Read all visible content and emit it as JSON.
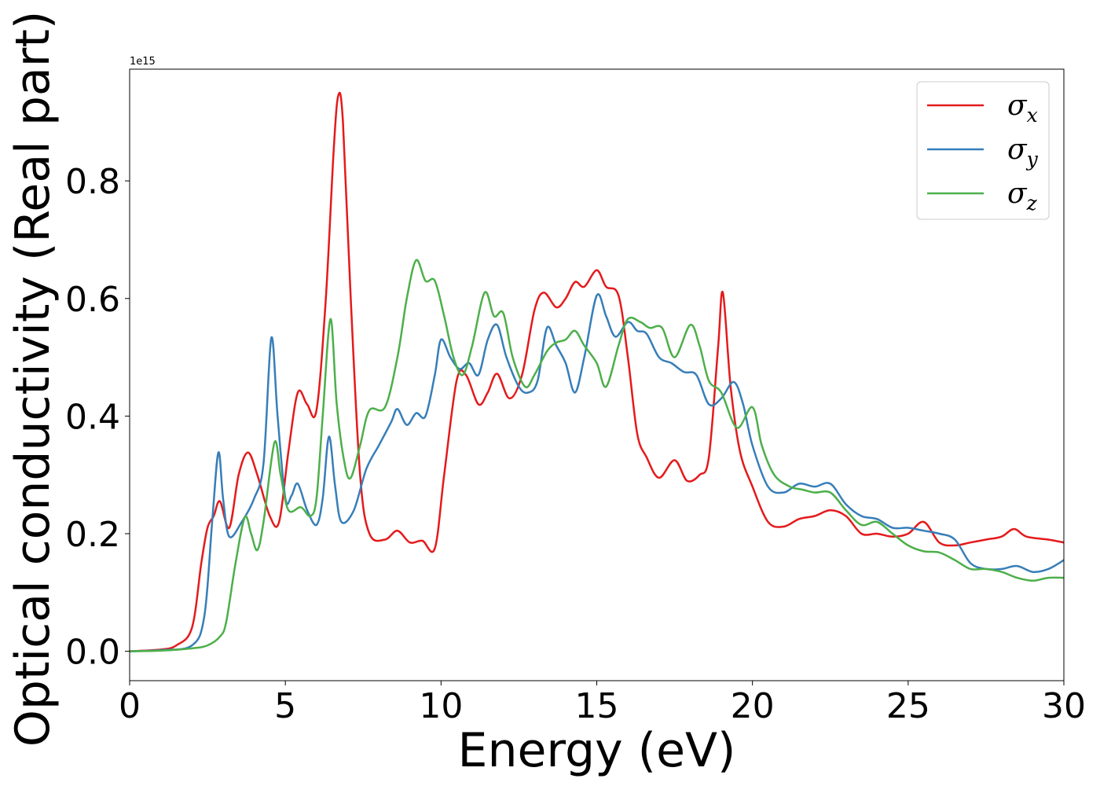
{
  "chart_data": {
    "type": "line",
    "xlabel": "Energy (eV)",
    "ylabel": "Optical conductivity (Real part)",
    "offset_text": "1e15",
    "xlim": [
      0,
      30
    ],
    "ylim": [
      -0.05,
      0.99
    ],
    "x_ticks": [
      0,
      5,
      10,
      15,
      20,
      25,
      30
    ],
    "y_ticks": [
      0.0,
      0.2,
      0.4,
      0.6,
      0.8
    ],
    "y_tick_labels": [
      "0.0",
      "0.2",
      "0.4",
      "0.6",
      "0.8"
    ],
    "grid": false,
    "legend_position": "top-right",
    "series": [
      {
        "name": "σ",
        "subscript": "x",
        "color": "#e41a1c",
        "points": [
          [
            0,
            0
          ],
          [
            1,
            0.003
          ],
          [
            1.5,
            0.01
          ],
          [
            2,
            0.04
          ],
          [
            2.3,
            0.15
          ],
          [
            2.5,
            0.21
          ],
          [
            2.7,
            0.23
          ],
          [
            2.9,
            0.255
          ],
          [
            3.2,
            0.21
          ],
          [
            3.5,
            0.3
          ],
          [
            3.8,
            0.338
          ],
          [
            4.1,
            0.3
          ],
          [
            4.5,
            0.23
          ],
          [
            4.8,
            0.22
          ],
          [
            5.1,
            0.34
          ],
          [
            5.4,
            0.44
          ],
          [
            5.7,
            0.42
          ],
          [
            6.0,
            0.41
          ],
          [
            6.3,
            0.6
          ],
          [
            6.55,
            0.85
          ],
          [
            6.7,
            0.945
          ],
          [
            6.85,
            0.9
          ],
          [
            7.1,
            0.6
          ],
          [
            7.4,
            0.3
          ],
          [
            7.7,
            0.2
          ],
          [
            8.2,
            0.19
          ],
          [
            8.6,
            0.205
          ],
          [
            9.0,
            0.185
          ],
          [
            9.4,
            0.188
          ],
          [
            9.8,
            0.175
          ],
          [
            10.1,
            0.3
          ],
          [
            10.5,
            0.46
          ],
          [
            10.8,
            0.47
          ],
          [
            11.2,
            0.42
          ],
          [
            11.5,
            0.44
          ],
          [
            11.8,
            0.472
          ],
          [
            12.2,
            0.43
          ],
          [
            12.6,
            0.47
          ],
          [
            13.0,
            0.58
          ],
          [
            13.3,
            0.61
          ],
          [
            13.7,
            0.585
          ],
          [
            14.0,
            0.6
          ],
          [
            14.3,
            0.628
          ],
          [
            14.6,
            0.62
          ],
          [
            15.0,
            0.648
          ],
          [
            15.3,
            0.62
          ],
          [
            15.7,
            0.605
          ],
          [
            16.0,
            0.5
          ],
          [
            16.3,
            0.37
          ],
          [
            16.6,
            0.33
          ],
          [
            17.0,
            0.295
          ],
          [
            17.5,
            0.325
          ],
          [
            17.9,
            0.29
          ],
          [
            18.3,
            0.3
          ],
          [
            18.6,
            0.33
          ],
          [
            18.9,
            0.52
          ],
          [
            19.05,
            0.61
          ],
          [
            19.3,
            0.45
          ],
          [
            19.6,
            0.34
          ],
          [
            20.0,
            0.28
          ],
          [
            20.5,
            0.22
          ],
          [
            21.0,
            0.212
          ],
          [
            21.5,
            0.225
          ],
          [
            22.0,
            0.23
          ],
          [
            22.5,
            0.24
          ],
          [
            23.0,
            0.23
          ],
          [
            23.5,
            0.2
          ],
          [
            24.0,
            0.2
          ],
          [
            24.5,
            0.195
          ],
          [
            25.0,
            0.2
          ],
          [
            25.5,
            0.22
          ],
          [
            26.0,
            0.185
          ],
          [
            26.5,
            0.18
          ],
          [
            27.0,
            0.185
          ],
          [
            27.5,
            0.19
          ],
          [
            28.0,
            0.195
          ],
          [
            28.4,
            0.208
          ],
          [
            28.8,
            0.195
          ],
          [
            29.5,
            0.19
          ],
          [
            30,
            0.185
          ]
        ]
      },
      {
        "name": "σ",
        "subscript": "y",
        "color": "#377eb8",
        "points": [
          [
            0,
            0
          ],
          [
            1,
            0.002
          ],
          [
            2,
            0.01
          ],
          [
            2.4,
            0.06
          ],
          [
            2.65,
            0.22
          ],
          [
            2.85,
            0.338
          ],
          [
            3.0,
            0.26
          ],
          [
            3.2,
            0.195
          ],
          [
            3.6,
            0.22
          ],
          [
            4.0,
            0.26
          ],
          [
            4.3,
            0.32
          ],
          [
            4.55,
            0.533
          ],
          [
            4.75,
            0.4
          ],
          [
            5.0,
            0.26
          ],
          [
            5.2,
            0.265
          ],
          [
            5.4,
            0.285
          ],
          [
            5.7,
            0.24
          ],
          [
            6.0,
            0.215
          ],
          [
            6.2,
            0.26
          ],
          [
            6.4,
            0.365
          ],
          [
            6.6,
            0.28
          ],
          [
            6.8,
            0.22
          ],
          [
            7.2,
            0.24
          ],
          [
            7.6,
            0.31
          ],
          [
            8.0,
            0.35
          ],
          [
            8.4,
            0.39
          ],
          [
            8.6,
            0.412
          ],
          [
            8.9,
            0.385
          ],
          [
            9.2,
            0.405
          ],
          [
            9.5,
            0.4
          ],
          [
            9.8,
            0.47
          ],
          [
            10.0,
            0.53
          ],
          [
            10.3,
            0.5
          ],
          [
            10.6,
            0.48
          ],
          [
            10.9,
            0.49
          ],
          [
            11.2,
            0.47
          ],
          [
            11.5,
            0.53
          ],
          [
            11.8,
            0.555
          ],
          [
            12.1,
            0.5
          ],
          [
            12.5,
            0.45
          ],
          [
            12.8,
            0.44
          ],
          [
            13.1,
            0.46
          ],
          [
            13.4,
            0.55
          ],
          [
            13.7,
            0.52
          ],
          [
            14.0,
            0.49
          ],
          [
            14.3,
            0.44
          ],
          [
            14.6,
            0.5
          ],
          [
            15.0,
            0.605
          ],
          [
            15.3,
            0.57
          ],
          [
            15.6,
            0.535
          ],
          [
            16.0,
            0.56
          ],
          [
            16.3,
            0.545
          ],
          [
            16.6,
            0.54
          ],
          [
            17.0,
            0.5
          ],
          [
            17.4,
            0.49
          ],
          [
            17.8,
            0.475
          ],
          [
            18.2,
            0.47
          ],
          [
            18.6,
            0.42
          ],
          [
            19.0,
            0.43
          ],
          [
            19.4,
            0.458
          ],
          [
            19.7,
            0.42
          ],
          [
            20.0,
            0.35
          ],
          [
            20.5,
            0.28
          ],
          [
            21.0,
            0.27
          ],
          [
            21.5,
            0.285
          ],
          [
            22.0,
            0.28
          ],
          [
            22.5,
            0.285
          ],
          [
            23.0,
            0.25
          ],
          [
            23.5,
            0.23
          ],
          [
            24.0,
            0.225
          ],
          [
            24.5,
            0.21
          ],
          [
            25.0,
            0.21
          ],
          [
            25.5,
            0.205
          ],
          [
            26.0,
            0.2
          ],
          [
            26.5,
            0.19
          ],
          [
            27.0,
            0.15
          ],
          [
            27.5,
            0.14
          ],
          [
            28.0,
            0.14
          ],
          [
            28.5,
            0.145
          ],
          [
            29.0,
            0.135
          ],
          [
            29.5,
            0.14
          ],
          [
            30,
            0.155
          ]
        ]
      },
      {
        "name": "σ",
        "subscript": "z",
        "color": "#4daf4a",
        "points": [
          [
            0,
            0
          ],
          [
            1,
            0.001
          ],
          [
            2,
            0.005
          ],
          [
            2.5,
            0.01
          ],
          [
            2.9,
            0.025
          ],
          [
            3.1,
            0.05
          ],
          [
            3.4,
            0.15
          ],
          [
            3.7,
            0.228
          ],
          [
            3.9,
            0.2
          ],
          [
            4.1,
            0.172
          ],
          [
            4.3,
            0.22
          ],
          [
            4.65,
            0.355
          ],
          [
            4.85,
            0.3
          ],
          [
            5.1,
            0.24
          ],
          [
            5.5,
            0.245
          ],
          [
            5.8,
            0.23
          ],
          [
            6.0,
            0.26
          ],
          [
            6.2,
            0.4
          ],
          [
            6.45,
            0.565
          ],
          [
            6.65,
            0.42
          ],
          [
            6.9,
            0.32
          ],
          [
            7.1,
            0.295
          ],
          [
            7.4,
            0.35
          ],
          [
            7.7,
            0.41
          ],
          [
            8.2,
            0.415
          ],
          [
            8.6,
            0.5
          ],
          [
            8.9,
            0.6
          ],
          [
            9.2,
            0.665
          ],
          [
            9.5,
            0.63
          ],
          [
            9.8,
            0.63
          ],
          [
            10.1,
            0.57
          ],
          [
            10.4,
            0.5
          ],
          [
            10.7,
            0.47
          ],
          [
            11.0,
            0.52
          ],
          [
            11.4,
            0.61
          ],
          [
            11.7,
            0.57
          ],
          [
            12.0,
            0.575
          ],
          [
            12.3,
            0.5
          ],
          [
            12.7,
            0.45
          ],
          [
            13.0,
            0.47
          ],
          [
            13.4,
            0.51
          ],
          [
            13.7,
            0.525
          ],
          [
            14.0,
            0.53
          ],
          [
            14.3,
            0.545
          ],
          [
            14.6,
            0.52
          ],
          [
            15.0,
            0.49
          ],
          [
            15.3,
            0.45
          ],
          [
            15.7,
            0.52
          ],
          [
            16.0,
            0.565
          ],
          [
            16.4,
            0.56
          ],
          [
            16.7,
            0.55
          ],
          [
            17.1,
            0.55
          ],
          [
            17.5,
            0.5
          ],
          [
            18.0,
            0.555
          ],
          [
            18.3,
            0.52
          ],
          [
            18.6,
            0.46
          ],
          [
            19.0,
            0.44
          ],
          [
            19.5,
            0.38
          ],
          [
            20.0,
            0.415
          ],
          [
            20.3,
            0.35
          ],
          [
            20.7,
            0.3
          ],
          [
            21.2,
            0.28
          ],
          [
            21.6,
            0.275
          ],
          [
            22.0,
            0.27
          ],
          [
            22.5,
            0.27
          ],
          [
            23.0,
            0.24
          ],
          [
            23.5,
            0.215
          ],
          [
            24.0,
            0.22
          ],
          [
            24.5,
            0.2
          ],
          [
            25.0,
            0.18
          ],
          [
            25.5,
            0.17
          ],
          [
            26.0,
            0.168
          ],
          [
            26.5,
            0.155
          ],
          [
            27.0,
            0.14
          ],
          [
            27.5,
            0.14
          ],
          [
            28.0,
            0.135
          ],
          [
            28.5,
            0.125
          ],
          [
            29.0,
            0.12
          ],
          [
            29.5,
            0.125
          ],
          [
            30,
            0.125
          ]
        ]
      }
    ]
  }
}
